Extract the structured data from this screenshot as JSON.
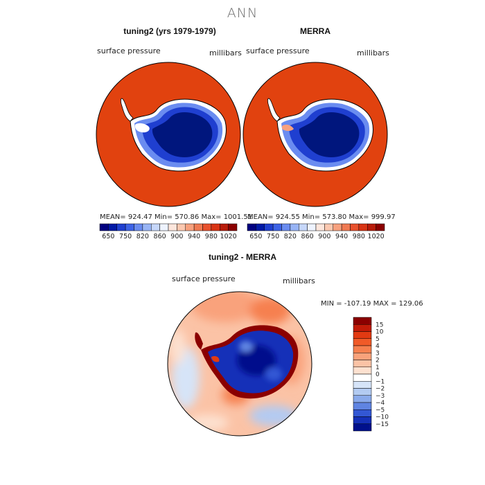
{
  "title": "ANN",
  "panels": [
    {
      "title": "tuning2 (yrs 1979-1979)",
      "variable": "surface pressure",
      "units": "millibars",
      "stats": "MEAN= 924.47   Min= 570.86   Max= 1001.51"
    },
    {
      "title": "MERRA",
      "variable": "surface pressure",
      "units": "millibars",
      "stats": "MEAN= 924.55   Min= 573.80   Max= 999.97"
    }
  ],
  "colorbar_top": {
    "labels": [
      "650",
      "750",
      "820",
      "860",
      "900",
      "940",
      "980",
      "1020"
    ],
    "colors": [
      "#000080",
      "#0019a6",
      "#1f3fd0",
      "#3d63e6",
      "#6a8cf0",
      "#98b4f5",
      "#c6d7fa",
      "#eef3ff",
      "#fde6dc",
      "#fbc8b0",
      "#f7a17e",
      "#f07a52",
      "#e8512d",
      "#d93414",
      "#b81c0a",
      "#8b0000"
    ]
  },
  "diff_panel": {
    "title": "tuning2 - MERRA",
    "variable": "surface pressure",
    "units": "millibars",
    "stats": "MIN = -107.19  MAX = 129.06",
    "colorbar": {
      "labels": [
        "15",
        "10",
        "5",
        "4",
        "3",
        "2",
        "1",
        "0",
        "−1",
        "−2",
        "−3",
        "−4",
        "−5",
        "−10",
        "−15"
      ],
      "colors": [
        "#8b0000",
        "#c21b08",
        "#e23a12",
        "#f05a28",
        "#f6804f",
        "#f9a27b",
        "#fbc3a6",
        "#fde1d0",
        "#ffffff",
        "#d6e4f8",
        "#b3cbf2",
        "#8aaaeb",
        "#5f84e2",
        "#3357d4",
        "#1530b8",
        "#00108c"
      ]
    }
  },
  "colors": {
    "ocean_high": "#e1420f",
    "ice_low": "#00167d"
  }
}
